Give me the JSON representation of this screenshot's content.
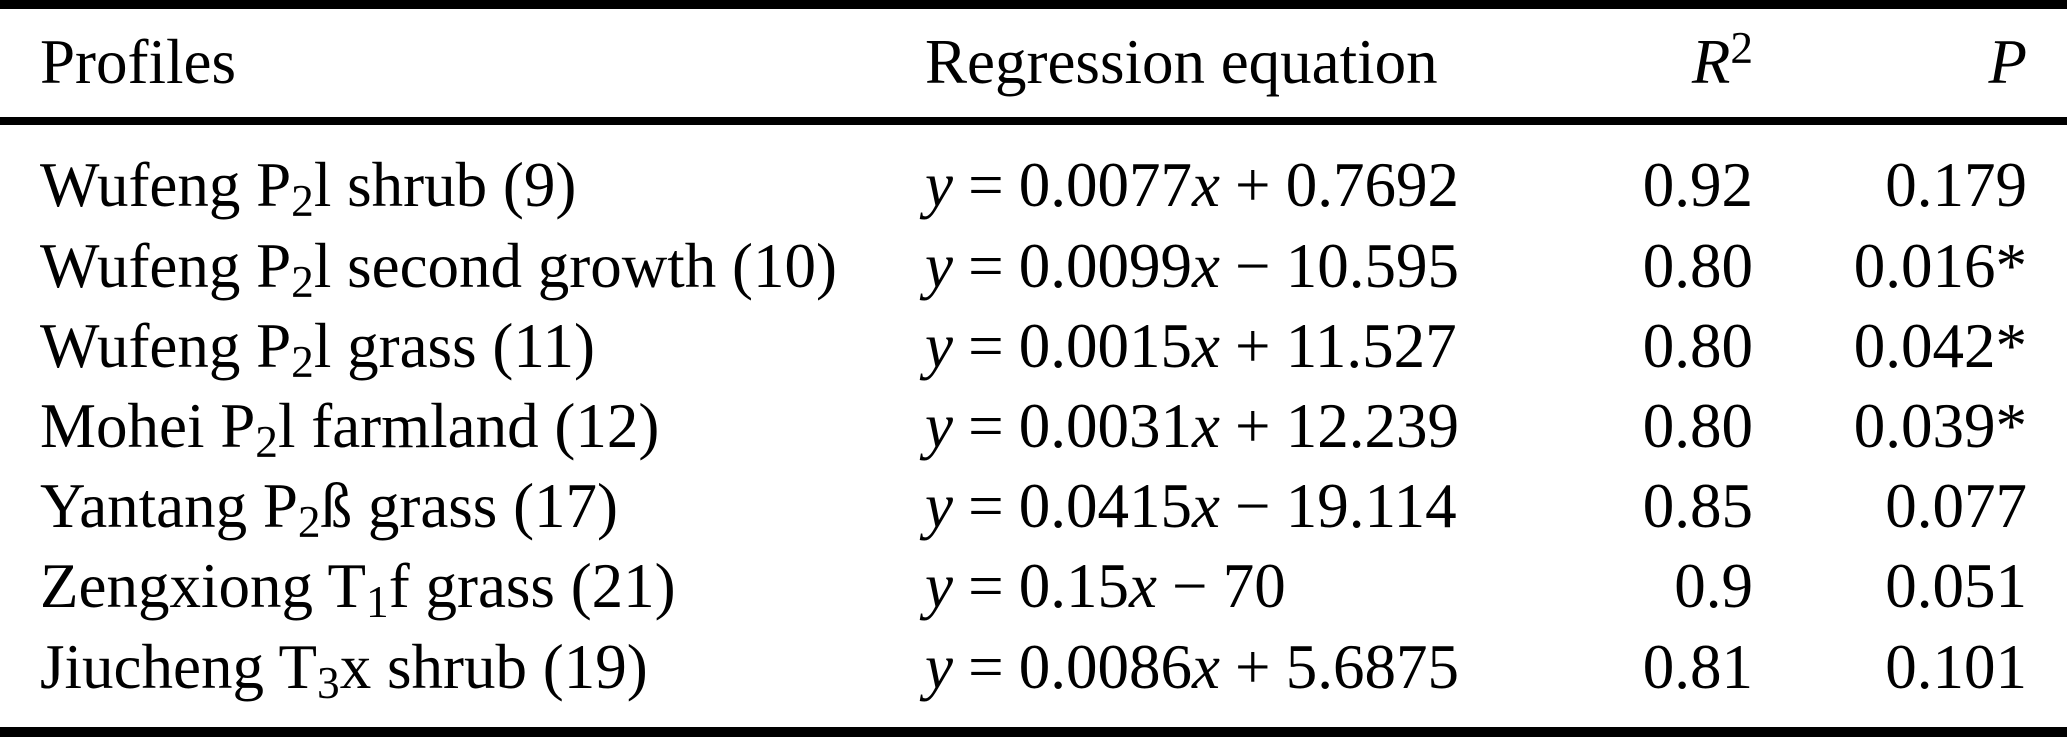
{
  "colors": {
    "text": "#000000",
    "background": "#ffffff",
    "rules": "#000000"
  },
  "table": {
    "headers": {
      "profiles": "Profiles",
      "equation": "Regression equation",
      "r2_base": "R",
      "r2_sup": "2",
      "p": "P"
    },
    "rows": [
      {
        "profile": {
          "pre": "Wufeng P",
          "sub": "2",
          "post": "l shrub (9)"
        },
        "eq": {
          "y": "y",
          "equals": "=",
          "slope": "0.0077",
          "x": "x",
          "op": "+",
          "intercept": "0.7692"
        },
        "r2": "0.92",
        "p": "0.179"
      },
      {
        "profile": {
          "pre": "Wufeng P",
          "sub": "2",
          "post": "l second growth (10)"
        },
        "eq": {
          "y": "y",
          "equals": "=",
          "slope": "0.0099",
          "x": "x",
          "op": "−",
          "intercept": "10.595"
        },
        "r2": "0.80",
        "p": "0.016*"
      },
      {
        "profile": {
          "pre": "Wufeng P",
          "sub": "2",
          "post": "l grass (11)"
        },
        "eq": {
          "y": "y",
          "equals": "=",
          "slope": "0.0015",
          "x": "x",
          "op": "+",
          "intercept": "11.527"
        },
        "r2": "0.80",
        "p": "0.042*"
      },
      {
        "profile": {
          "pre": "Mohei P",
          "sub": "2",
          "post": "l farmland (12)"
        },
        "eq": {
          "y": "y",
          "equals": "=",
          "slope": "0.0031",
          "x": "x",
          "op": "+",
          "intercept": "12.239"
        },
        "r2": "0.80",
        "p": "0.039*"
      },
      {
        "profile": {
          "pre": "Yantang P",
          "sub": "2",
          "post": "ß grass (17)"
        },
        "eq": {
          "y": "y",
          "equals": "=",
          "slope": "0.0415",
          "x": "x",
          "op": "−",
          "intercept": "19.114"
        },
        "r2": "0.85",
        "p": "0.077"
      },
      {
        "profile": {
          "pre": "Zengxiong T",
          "sub": "1",
          "post": "f grass (21)"
        },
        "eq": {
          "y": "y",
          "equals": "=",
          "slope": "0.15",
          "x": "x",
          "op": "−",
          "intercept": "70"
        },
        "r2": "0.9",
        "p": "0.051"
      },
      {
        "profile": {
          "pre": "Jiucheng T",
          "sub": "3",
          "post": "x shrub (19)"
        },
        "eq": {
          "y": "y",
          "equals": "=",
          "slope": "0.0086",
          "x": "x",
          "op": "+",
          "intercept": "5.6875"
        },
        "r2": "0.81",
        "p": "0.101"
      }
    ]
  }
}
